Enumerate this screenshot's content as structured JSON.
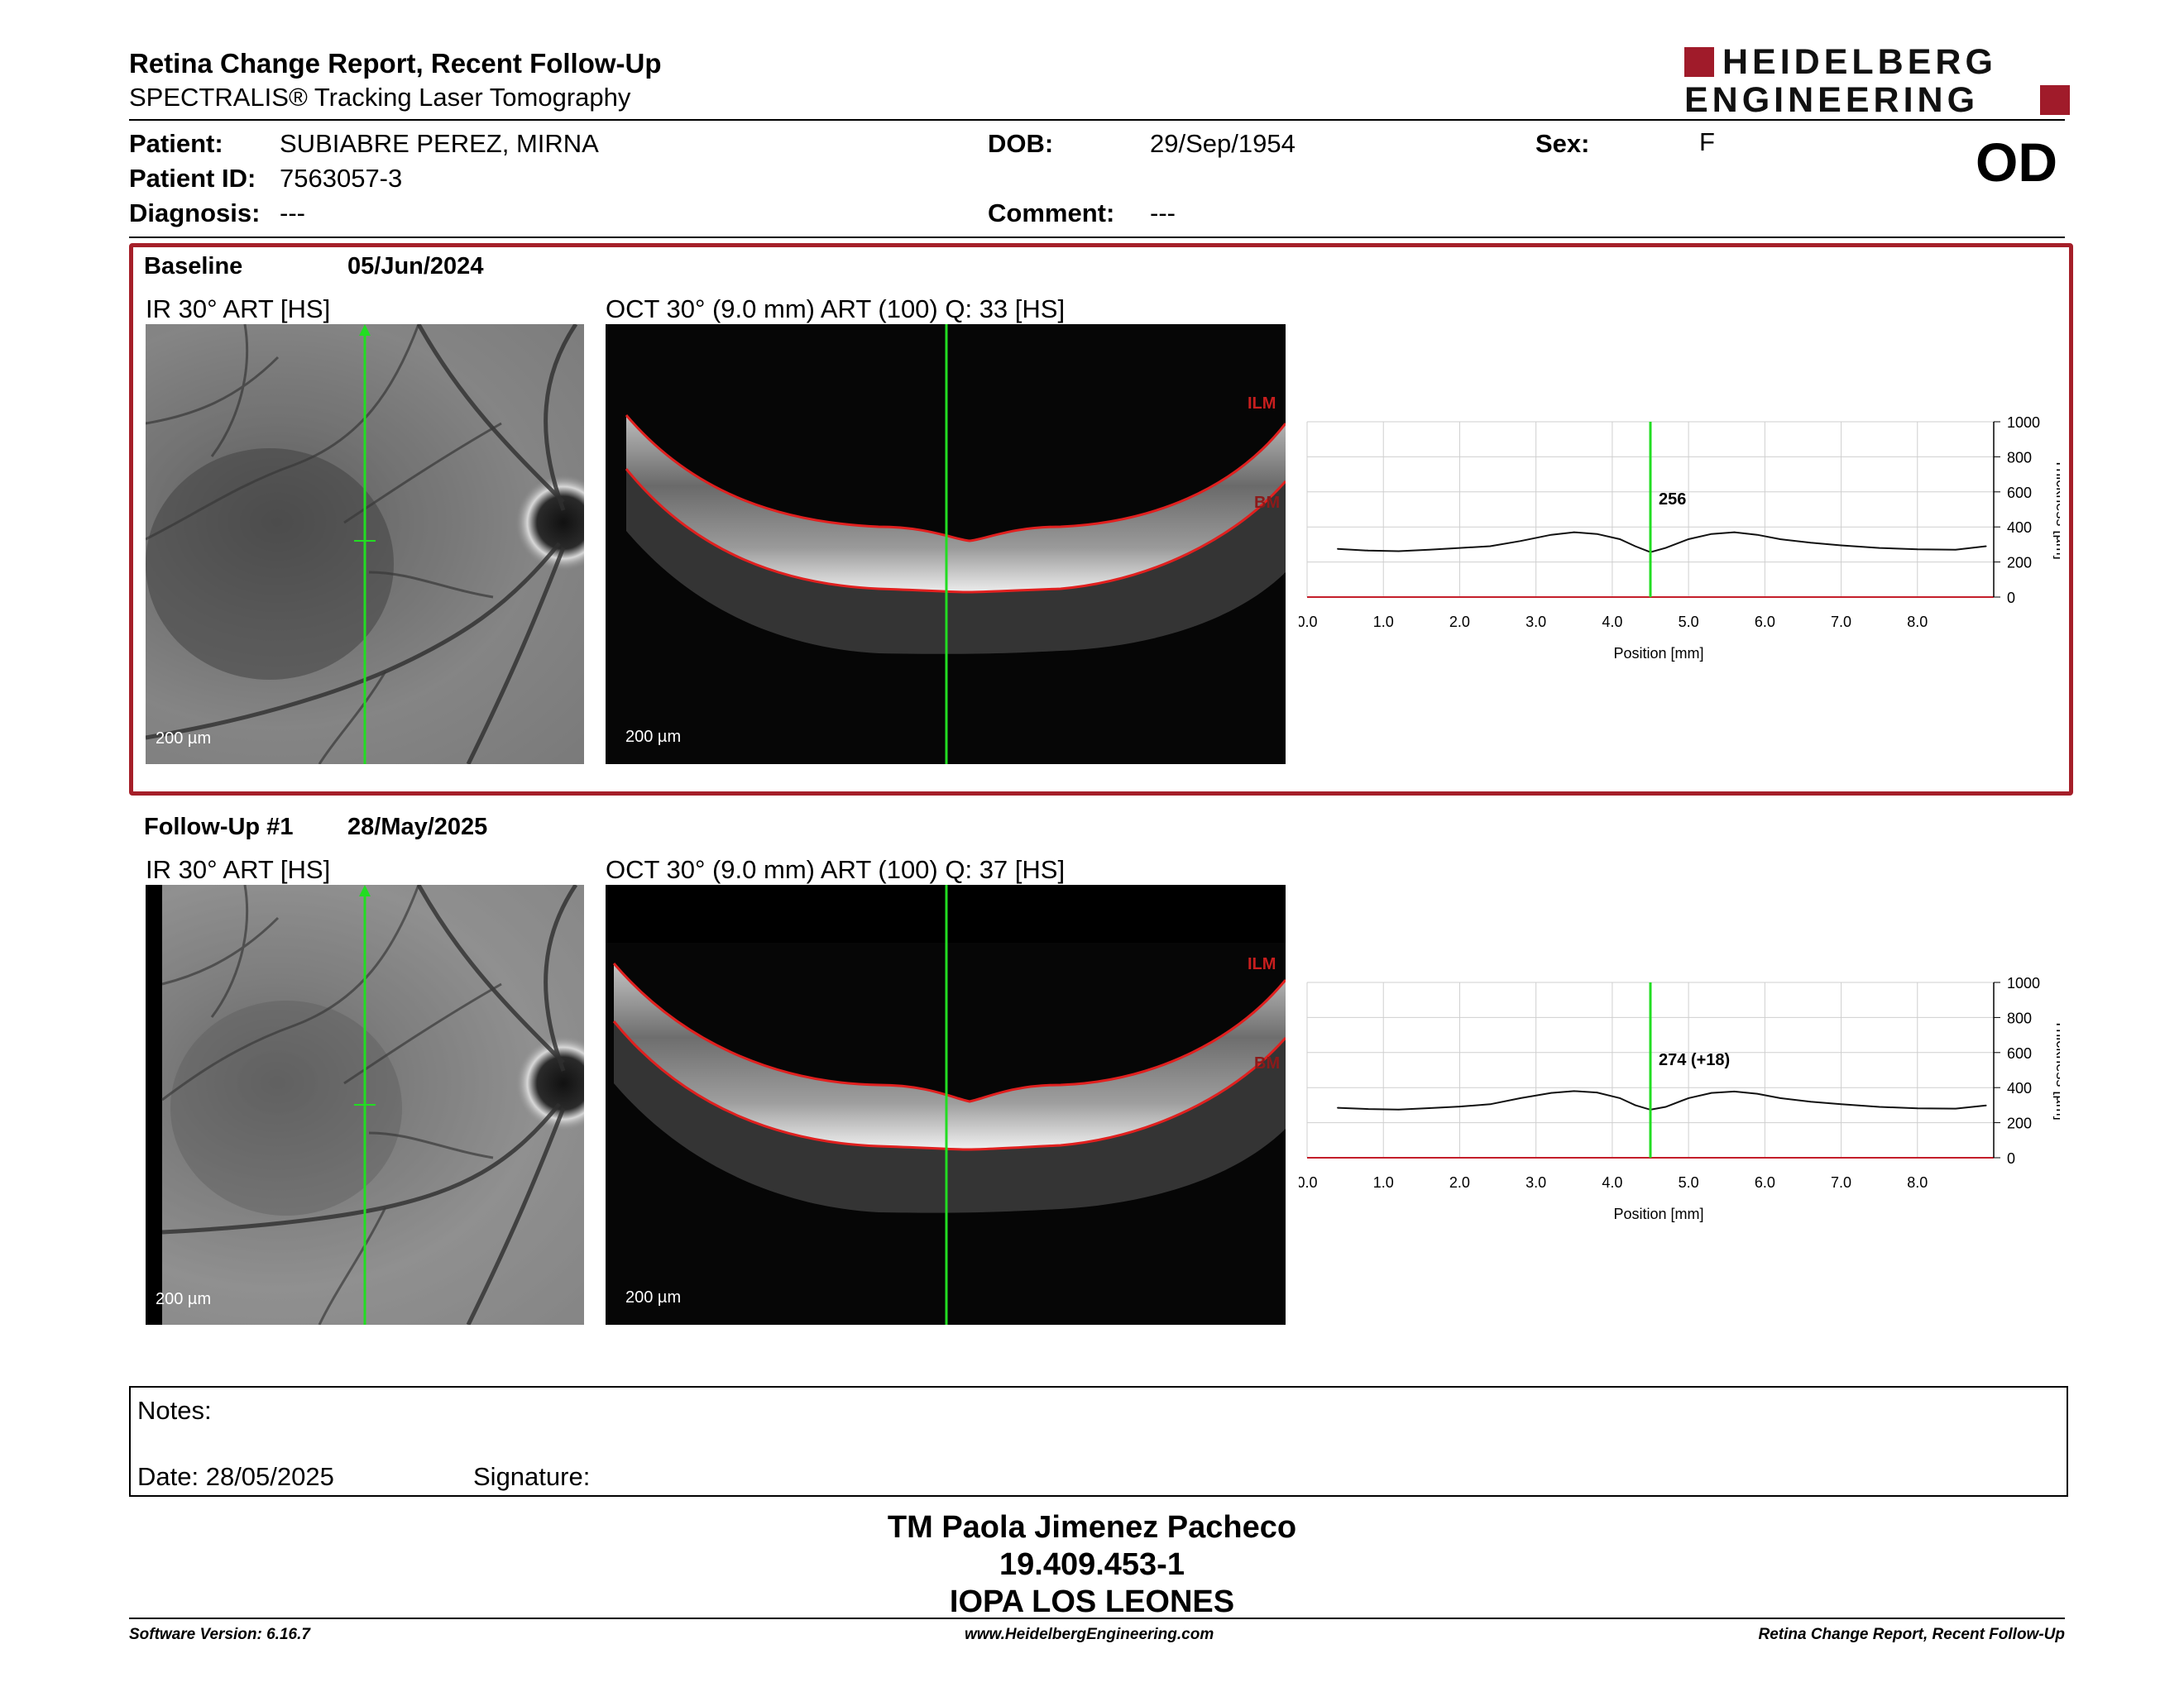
{
  "header": {
    "title": "Retina Change Report, Recent Follow-Up",
    "subtitle": "SPECTRALIS® Tracking Laser Tomography",
    "brand_line1": "HEIDELBERG",
    "brand_line2": "ENGINEERING",
    "brand_color": "#a01b2a"
  },
  "patient": {
    "patient_label": "Patient:",
    "patient_value": "SUBIABRE PEREZ, MIRNA",
    "id_label": "Patient ID:",
    "id_value": "7563057-3",
    "diagnosis_label": "Diagnosis:",
    "diagnosis_value": "---",
    "dob_label": "DOB:",
    "dob_value": "29/Sep/1954",
    "comment_label": "Comment:",
    "comment_value": "---",
    "sex_label": "Sex:",
    "sex_value": "F",
    "eye": "OD"
  },
  "baseline": {
    "title": "Baseline",
    "date": "05/Jun/2024",
    "ir_caption": "IR 30° ART [HS]",
    "oct_caption": "OCT 30° (9.0 mm) ART (100) Q: 33 [HS]",
    "ir_scale": "200 µm",
    "oct_scale": "200 µm",
    "ilm_label": "ILM",
    "bm_label": "BM"
  },
  "followup": {
    "title": "Follow-Up #1",
    "date": "28/May/2025",
    "ir_caption": "IR 30° ART [HS]",
    "oct_caption": "OCT 30° (9.0 mm) ART (100) Q: 37 [HS]",
    "ir_scale": "200 µm",
    "oct_scale": "200 µm",
    "ilm_label": "ILM",
    "bm_label": "BM"
  },
  "chart_data": [
    {
      "type": "line",
      "xlabel": "Position [mm]",
      "ylabel": "Thickness [µm]",
      "xlim": [
        0,
        9
      ],
      "ylim": [
        0,
        1000
      ],
      "x_ticks": [
        "0.0",
        "1.0",
        "2.0",
        "3.0",
        "4.0",
        "5.0",
        "6.0",
        "7.0",
        "8.0"
      ],
      "y_ticks": [
        "0",
        "200",
        "400",
        "600",
        "800",
        "1000"
      ],
      "marker_x": 4.5,
      "marker_label": "256",
      "marker_color": "#22dd22",
      "series": [
        {
          "x": [
            0.4,
            0.8,
            1.2,
            1.6,
            2.0,
            2.4,
            2.8,
            3.2,
            3.5,
            3.8,
            4.1,
            4.3,
            4.5,
            4.7,
            5.0,
            5.3,
            5.6,
            5.9,
            6.2,
            6.6,
            7.0,
            7.5,
            8.0,
            8.5,
            8.9
          ],
          "y": [
            275,
            265,
            262,
            270,
            280,
            290,
            320,
            355,
            370,
            360,
            330,
            290,
            256,
            280,
            330,
            360,
            370,
            355,
            330,
            310,
            295,
            280,
            272,
            270,
            290
          ]
        }
      ]
    },
    {
      "type": "line",
      "xlabel": "Position [mm]",
      "ylabel": "Thickness [µm]",
      "xlim": [
        0,
        9
      ],
      "ylim": [
        0,
        1000
      ],
      "x_ticks": [
        "0.0",
        "1.0",
        "2.0",
        "3.0",
        "4.0",
        "5.0",
        "6.0",
        "7.0",
        "8.0"
      ],
      "y_ticks": [
        "0",
        "200",
        "400",
        "600",
        "800",
        "1000"
      ],
      "marker_x": 4.5,
      "marker_label": "274 (+18)",
      "marker_color": "#22dd22",
      "series": [
        {
          "x": [
            0.4,
            0.8,
            1.2,
            1.6,
            2.0,
            2.4,
            2.8,
            3.2,
            3.5,
            3.8,
            4.1,
            4.3,
            4.5,
            4.7,
            5.0,
            5.3,
            5.6,
            5.9,
            6.2,
            6.6,
            7.0,
            7.5,
            8.0,
            8.5,
            8.9
          ],
          "y": [
            285,
            278,
            275,
            283,
            292,
            305,
            340,
            370,
            380,
            372,
            340,
            300,
            274,
            290,
            340,
            370,
            378,
            365,
            340,
            320,
            305,
            290,
            282,
            280,
            298
          ]
        }
      ]
    }
  ],
  "notes": {
    "notes_label": "Notes:",
    "date_label": "Date: 28/05/2025",
    "signature_label": "Signature:"
  },
  "signatory": {
    "name": "TM Paola Jimenez Pacheco",
    "id": "19.409.453-1",
    "org": "IOPA LOS LEONES"
  },
  "footer": {
    "software": "Software Version: 6.16.7",
    "url": "www.HeidelbergEngineering.com",
    "report_name": "Retina Change Report, Recent Follow-Up"
  }
}
